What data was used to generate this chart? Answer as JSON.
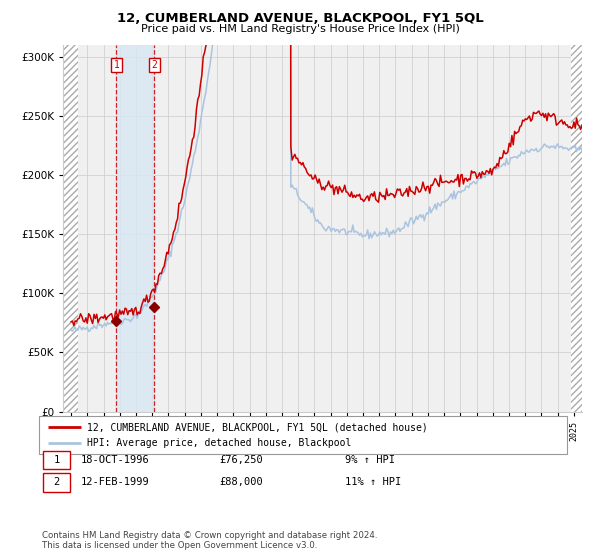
{
  "title": "12, CUMBERLAND AVENUE, BLACKPOOL, FY1 5QL",
  "subtitle": "Price paid vs. HM Land Registry's House Price Index (HPI)",
  "legend_line1": "12, CUMBERLAND AVENUE, BLACKPOOL, FY1 5QL (detached house)",
  "legend_line2": "HPI: Average price, detached house, Blackpool",
  "transaction1_label": "1",
  "transaction1_date": "18-OCT-1996",
  "transaction1_price": "£76,250",
  "transaction1_hpi": "9% ↑ HPI",
  "transaction1_year": 1996.79,
  "transaction1_value": 76250,
  "transaction2_label": "2",
  "transaction2_date": "12-FEB-1999",
  "transaction2_price": "£88,000",
  "transaction2_hpi": "11% ↑ HPI",
  "transaction2_year": 1999.12,
  "transaction2_value": 88000,
  "copyright": "Contains HM Land Registry data © Crown copyright and database right 2024.\nThis data is licensed under the Open Government Licence v3.0.",
  "xlim_left": 1993.5,
  "xlim_right": 2025.5,
  "ylim_bottom": 0,
  "ylim_top": 310000,
  "hpi_color": "#aac4e0",
  "price_color": "#cc0000",
  "background_color": "#ffffff",
  "plot_bg_color": "#f0f0f0",
  "grid_color": "#cccccc",
  "shade_color": "#d8e8f5"
}
